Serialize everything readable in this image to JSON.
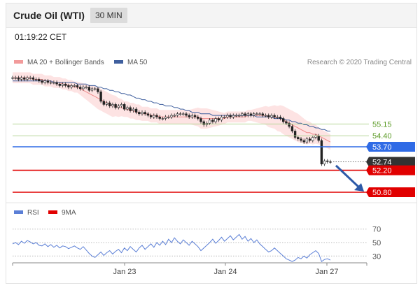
{
  "header": {
    "title": "Crude Oil (WTI)",
    "interval": "30 MIN",
    "time": "01:19:22 CET"
  },
  "legend": {
    "bollinger": "MA 20 + Bollinger Bands",
    "ma50": "MA 50",
    "rsi": "RSI",
    "ma9": "9MA",
    "credit": "Research © 2020 Trading Central"
  },
  "colors": {
    "candle": "#222222",
    "bollinger_fill": "#fde3e3",
    "ma20": "#ef8a8a",
    "ma50": "#3f5f9e",
    "level_green": "#b8d79a",
    "level_blue": "#2f6be6",
    "level_red": "#e10000",
    "rsi": "#5b7fd6",
    "arrow": "#2d5aa8"
  },
  "chart_data": [
    {
      "type": "line",
      "title": "",
      "x_ticks": [
        "Jan 23",
        "Jan 24",
        "Jan 27"
      ],
      "ylim": [
        50.4,
        58.6
      ],
      "series": [
        {
          "name": "Price",
          "values": [
            58.1,
            58.1,
            58.0,
            58.1,
            58.0,
            58.1,
            58.1,
            58.0,
            58.0,
            57.9,
            57.8,
            57.9,
            57.8,
            57.8,
            57.8,
            57.7,
            57.6,
            57.7,
            57.6,
            57.5,
            57.6,
            57.6,
            57.5,
            57.4,
            57.5,
            57.5,
            57.3,
            57.4,
            57.4,
            57.2,
            56.6,
            56.4,
            56.5,
            56.3,
            56.4,
            56.2,
            56.3,
            56.4,
            56.1,
            56.2,
            56.0,
            56.1,
            55.9,
            55.8,
            55.9,
            55.8,
            55.7,
            55.6,
            55.7,
            55.6,
            55.5,
            55.5,
            55.6,
            55.6,
            55.7,
            55.7,
            55.8,
            55.8,
            55.8,
            55.7,
            55.6,
            55.7,
            55.6,
            55.5,
            55.3,
            55.1,
            55.2,
            55.4,
            55.3,
            55.5,
            55.4,
            55.6,
            55.6,
            55.7,
            55.6,
            55.7,
            55.7,
            55.7,
            55.8,
            55.7,
            55.8,
            55.7,
            55.8,
            55.8,
            55.8,
            55.7,
            55.7,
            55.6,
            55.7,
            55.6,
            55.6,
            55.5,
            55.3,
            55.2,
            55.0,
            54.7,
            54.3,
            54.2,
            54.1,
            54.0,
            54.2,
            54.1,
            54.3,
            54.4,
            54.1,
            52.6,
            52.8,
            52.75,
            52.74
          ]
        },
        {
          "name": "MA 20",
          "values": [
            58.1,
            58.1,
            58.1,
            58.1,
            58.1,
            58.1,
            58.1,
            58.0,
            58.0,
            58.0,
            58.0,
            57.9,
            57.9,
            57.9,
            57.8,
            57.8,
            57.8,
            57.7,
            57.7,
            57.6,
            57.6,
            57.5,
            57.5,
            57.4,
            57.3,
            57.2,
            57.1,
            57.0,
            56.9,
            56.8,
            56.7,
            56.6,
            56.5,
            56.4,
            56.3,
            56.3,
            56.2,
            56.2,
            56.1,
            56.1,
            56.0,
            56.0,
            55.9,
            55.9,
            55.8,
            55.8,
            55.8,
            55.7,
            55.7,
            55.7,
            55.6,
            55.6,
            55.6,
            55.6,
            55.6,
            55.6,
            55.6,
            55.6,
            55.6,
            55.6,
            55.6,
            55.6,
            55.6,
            55.6,
            55.5,
            55.5,
            55.5,
            55.5,
            55.5,
            55.5,
            55.5,
            55.5,
            55.5,
            55.6,
            55.6,
            55.6,
            55.6,
            55.6,
            55.6,
            55.6,
            55.7,
            55.7,
            55.7,
            55.7,
            55.7,
            55.7,
            55.7,
            55.6,
            55.6,
            55.6,
            55.5,
            55.5,
            55.4,
            55.3,
            55.2,
            55.1,
            55.0,
            54.9,
            54.8,
            54.7,
            54.6,
            54.6,
            54.5,
            54.5,
            54.4,
            54.3,
            54.2,
            54.1,
            54.0
          ]
        },
        {
          "name": "MA 50",
          "values": [
            57.9,
            57.9,
            57.9,
            57.9,
            57.9,
            57.9,
            57.9,
            57.9,
            57.9,
            57.9,
            57.9,
            57.9,
            57.9,
            57.9,
            57.8,
            57.8,
            57.8,
            57.8,
            57.8,
            57.8,
            57.8,
            57.8,
            57.7,
            57.7,
            57.7,
            57.7,
            57.6,
            57.6,
            57.6,
            57.5,
            57.5,
            57.4,
            57.4,
            57.3,
            57.3,
            57.2,
            57.2,
            57.1,
            57.1,
            57.0,
            57.0,
            56.9,
            56.8,
            56.8,
            56.7,
            56.7,
            56.6,
            56.6,
            56.5,
            56.5,
            56.4,
            56.4,
            56.3,
            56.3,
            56.3,
            56.2,
            56.2,
            56.1,
            56.1,
            56.0,
            56.0,
            55.9,
            55.9,
            55.9,
            55.8,
            55.8,
            55.8,
            55.8,
            55.7,
            55.7,
            55.7,
            55.7,
            55.7,
            55.7,
            55.7,
            55.7,
            55.7,
            55.7,
            55.7,
            55.7,
            55.7,
            55.7,
            55.7,
            55.6,
            55.6,
            55.6,
            55.6,
            55.6,
            55.6,
            55.5,
            55.5,
            55.5,
            55.5,
            55.4,
            55.4,
            55.3,
            55.3,
            55.2,
            55.2,
            55.1,
            55.1,
            55.0,
            55.0,
            54.9,
            54.9,
            54.8,
            54.8,
            54.7,
            54.7
          ]
        }
      ],
      "bollinger_width": [
        0.35,
        0.35,
        0.35,
        0.35,
        0.35,
        0.35,
        0.35,
        0.35,
        0.35,
        0.35,
        0.35,
        0.35,
        0.35,
        0.35,
        0.35,
        0.35,
        0.35,
        0.35,
        0.35,
        0.35,
        0.35,
        0.35,
        0.35,
        0.4,
        0.45,
        0.5,
        0.55,
        0.6,
        0.65,
        0.7,
        0.7,
        0.7,
        0.7,
        0.7,
        0.7,
        0.65,
        0.6,
        0.55,
        0.5,
        0.5,
        0.5,
        0.5,
        0.5,
        0.5,
        0.45,
        0.45,
        0.45,
        0.45,
        0.45,
        0.45,
        0.45,
        0.45,
        0.45,
        0.45,
        0.45,
        0.45,
        0.45,
        0.45,
        0.45,
        0.45,
        0.45,
        0.5,
        0.55,
        0.6,
        0.65,
        0.65,
        0.65,
        0.6,
        0.55,
        0.5,
        0.45,
        0.4,
        0.35,
        0.35,
        0.35,
        0.35,
        0.35,
        0.35,
        0.35,
        0.35,
        0.35,
        0.35,
        0.4,
        0.45,
        0.5,
        0.55,
        0.6,
        0.65,
        0.7,
        0.75,
        0.8,
        0.85,
        0.9,
        0.9,
        0.9,
        0.9,
        0.9,
        0.9,
        0.85,
        0.8,
        0.75,
        0.7,
        0.65,
        0.6,
        0.55,
        0.5,
        0.5,
        0.5,
        0.5
      ],
      "levels": [
        {
          "label": "55.15",
          "value": 55.15,
          "style": "green"
        },
        {
          "label": "54.40",
          "value": 54.4,
          "style": "green"
        },
        {
          "label": "53.70",
          "value": 53.7,
          "style": "blue"
        },
        {
          "label": "52.74",
          "value": 52.74,
          "style": "last"
        },
        {
          "label": "52.20",
          "value": 52.2,
          "style": "red"
        },
        {
          "label": "50.80",
          "value": 50.8,
          "style": "red"
        }
      ]
    },
    {
      "type": "line",
      "title": "",
      "ylim": [
        20,
        80
      ],
      "y_ticks": [
        "70",
        "50",
        "30"
      ],
      "y_tick_values": [
        70,
        50,
        30
      ],
      "series": [
        {
          "name": "RSI",
          "values": [
            48,
            50,
            47,
            52,
            49,
            53,
            51,
            48,
            50,
            46,
            45,
            48,
            44,
            47,
            43,
            46,
            42,
            45,
            44,
            41,
            43,
            45,
            42,
            40,
            44,
            39,
            34,
            30,
            28,
            32,
            36,
            31,
            35,
            38,
            33,
            37,
            40,
            35,
            42,
            38,
            44,
            40,
            36,
            42,
            46,
            40,
            44,
            48,
            43,
            50,
            46,
            52,
            47,
            55,
            50,
            57,
            52,
            48,
            54,
            50,
            46,
            52,
            48,
            44,
            38,
            42,
            46,
            50,
            55,
            49,
            53,
            58,
            52,
            56,
            60,
            54,
            58,
            62,
            55,
            59,
            52,
            56,
            50,
            54,
            48,
            44,
            40,
            36,
            38,
            42,
            38,
            34,
            30,
            26,
            24,
            22,
            24,
            28,
            26,
            30,
            27,
            32,
            35,
            38,
            34,
            22,
            25,
            26,
            24
          ]
        },
        {
          "name": "9MA",
          "values": []
        }
      ]
    }
  ]
}
